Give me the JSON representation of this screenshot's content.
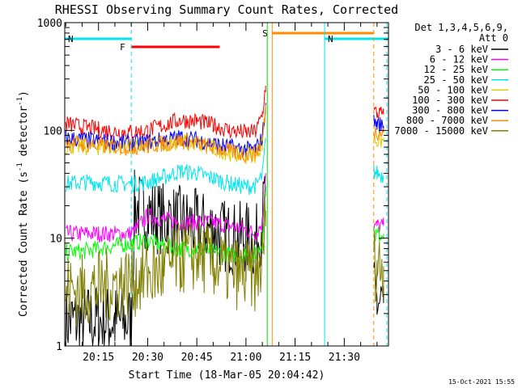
{
  "chart_data": {
    "type": "line",
    "title": "RHESSI Observing Summary Count Rates, Corrected",
    "xlabel": "Start Time (18-Mar-05 20:04:42)",
    "ylabel_main": "Corrected Count Rate (s",
    "ylabel_sup1": "-1",
    "ylabel_mid": " detector",
    "ylabel_sup2": "-1",
    "ylabel_end": ")",
    "y_scale": "log",
    "ylim": [
      1,
      1000
    ],
    "xlim": [
      "20:04:42",
      "21:43:30"
    ],
    "x_ticks": [
      "20:15",
      "20:30",
      "20:45",
      "21:00",
      "21:15",
      "21:30"
    ],
    "y_ticks": [
      "1",
      "10",
      "100",
      "1000"
    ],
    "legend_header": [
      "Det 1,3,4,5,6,9,",
      "Att 0"
    ],
    "timestamp": "15-Oct-2021 15:55",
    "flags": [
      {
        "label": "N",
        "color": "#00e5ee",
        "start": "20:04:42",
        "end": "20:25:00"
      },
      {
        "label": "N",
        "color": "#00e5ee",
        "start": "21:24:00",
        "end": "21:43:30"
      },
      {
        "label": "F",
        "color": "#ff0000",
        "start": "20:25:00",
        "end": "20:52:00"
      },
      {
        "label": "S",
        "color": "#ff8c00",
        "start": "21:08:00",
        "end": "21:39:00"
      }
    ],
    "vlines": [
      {
        "time": "20:25:00",
        "color": "#00e5ee",
        "style": "dashed"
      },
      {
        "time": "21:06:30",
        "color": "#00dd00",
        "style": "solid"
      },
      {
        "time": "21:08:00",
        "color": "#ff8c00",
        "style": "solid"
      },
      {
        "time": "21:24:00",
        "color": "#00e5ee",
        "style": "solid"
      },
      {
        "time": "21:39:00",
        "color": "#ff8c00",
        "style": "dashed"
      },
      {
        "time": "21:43:00",
        "color": "#00e5ee",
        "style": "dashed"
      }
    ],
    "series": [
      {
        "name": "3 - 6 keV",
        "color": "#000000",
        "segments": [
          [
            [
              "20:05",
              1.7
            ],
            [
              "20:10",
              1.7
            ],
            [
              "20:15",
              1.7
            ],
            [
              "20:20",
              1.7
            ],
            [
              "20:25",
              1.7
            ],
            [
              "20:26",
              20
            ],
            [
              "20:30",
              17
            ],
            [
              "20:35",
              15
            ],
            [
              "20:40",
              14
            ],
            [
              "20:45",
              13
            ],
            [
              "20:50",
              12
            ],
            [
              "20:55",
              10
            ],
            [
              "21:00",
              10
            ],
            [
              "21:03",
              9
            ],
            [
              "21:05",
              14
            ],
            [
              "21:06",
              30
            ]
          ],
          [
            [
              "21:39",
              3
            ],
            [
              "21:40",
              2.5
            ],
            [
              "21:42",
              2.5
            ]
          ]
        ]
      },
      {
        "name": "6 - 12 keV",
        "color": "#ff00ff",
        "segments": [
          [
            [
              "20:05",
              11
            ],
            [
              "20:10",
              11
            ],
            [
              "20:15",
              11
            ],
            [
              "20:20",
              11
            ],
            [
              "20:25",
              11
            ],
            [
              "20:30",
              16
            ],
            [
              "20:35",
              15
            ],
            [
              "20:40",
              14
            ],
            [
              "20:45",
              14
            ],
            [
              "20:50",
              14
            ],
            [
              "20:55",
              13
            ],
            [
              "21:00",
              12
            ],
            [
              "21:03",
              11
            ],
            [
              "21:05",
              14
            ],
            [
              "21:06",
              40
            ]
          ],
          [
            [
              "21:39",
              13
            ],
            [
              "21:40",
              13
            ],
            [
              "21:42",
              13
            ]
          ]
        ]
      },
      {
        "name": "12 - 25 keV",
        "color": "#00ff00",
        "segments": [
          [
            [
              "20:05",
              7.5
            ],
            [
              "20:10",
              7.5
            ],
            [
              "20:15",
              8
            ],
            [
              "20:20",
              8.5
            ],
            [
              "20:25",
              9
            ],
            [
              "20:30",
              9.5
            ],
            [
              "20:35",
              8.5
            ],
            [
              "20:40",
              8
            ],
            [
              "20:45",
              8
            ],
            [
              "20:50",
              7.5
            ],
            [
              "20:55",
              7
            ],
            [
              "21:00",
              7
            ],
            [
              "21:03",
              7
            ],
            [
              "21:05",
              9
            ],
            [
              "21:06",
              30
            ]
          ],
          [
            [
              "21:39",
              11
            ],
            [
              "21:40",
              11
            ],
            [
              "21:42",
              11
            ]
          ]
        ]
      },
      {
        "name": "25 - 50 keV",
        "color": "#00e5ee",
        "segments": [
          [
            [
              "20:05",
              32
            ],
            [
              "20:10",
              33
            ],
            [
              "20:15",
              33
            ],
            [
              "20:20",
              32
            ],
            [
              "20:25",
              32
            ],
            [
              "20:30",
              33
            ],
            [
              "20:35",
              37
            ],
            [
              "20:40",
              42
            ],
            [
              "20:45",
              40
            ],
            [
              "20:50",
              36
            ],
            [
              "20:55",
              32
            ],
            [
              "21:00",
              30
            ],
            [
              "21:03",
              31
            ],
            [
              "21:05",
              38
            ],
            [
              "21:06",
              80
            ]
          ],
          [
            [
              "21:39",
              42
            ],
            [
              "21:40",
              40
            ],
            [
              "21:42",
              38
            ]
          ]
        ]
      },
      {
        "name": "50 - 100 keV",
        "color": "#ddcc00",
        "segments": [
          [
            [
              "20:05",
              72
            ],
            [
              "20:10",
              70
            ],
            [
              "20:15",
              70
            ],
            [
              "20:20",
              71
            ],
            [
              "20:25",
              70
            ],
            [
              "20:30",
              72
            ],
            [
              "20:35",
              75
            ],
            [
              "20:40",
              80
            ],
            [
              "20:45",
              75
            ],
            [
              "20:50",
              68
            ],
            [
              "20:55",
              62
            ],
            [
              "21:00",
              58
            ],
            [
              "21:03",
              60
            ],
            [
              "21:05",
              75
            ],
            [
              "21:06",
              150
            ]
          ],
          [
            [
              "21:39",
              85
            ],
            [
              "21:40",
              80
            ],
            [
              "21:42",
              80
            ]
          ]
        ]
      },
      {
        "name": "100 - 300 keV",
        "color": "#ff0000",
        "segments": [
          [
            [
              "20:05",
              115
            ],
            [
              "20:10",
              108
            ],
            [
              "20:15",
              102
            ],
            [
              "20:20",
              98
            ],
            [
              "20:25",
              96
            ],
            [
              "20:30",
              100
            ],
            [
              "20:35",
              112
            ],
            [
              "20:40",
              125
            ],
            [
              "20:45",
              122
            ],
            [
              "20:50",
              112
            ],
            [
              "20:55",
              100
            ],
            [
              "21:00",
              95
            ],
            [
              "21:03",
              97
            ],
            [
              "21:05",
              140
            ],
            [
              "21:06",
              260
            ]
          ],
          [
            [
              "21:39",
              150
            ],
            [
              "21:40",
              145
            ],
            [
              "21:42",
              140
            ]
          ]
        ]
      },
      {
        "name": "300 - 800 keV",
        "color": "#0000ff",
        "segments": [
          [
            [
              "20:05",
              85
            ],
            [
              "20:10",
              82
            ],
            [
              "20:15",
              80
            ],
            [
              "20:20",
              78
            ],
            [
              "20:25",
              76
            ],
            [
              "20:30",
              78
            ],
            [
              "20:35",
              82
            ],
            [
              "20:40",
              86
            ],
            [
              "20:45",
              82
            ],
            [
              "20:50",
              75
            ],
            [
              "20:55",
              70
            ],
            [
              "21:00",
              66
            ],
            [
              "21:03",
              67
            ],
            [
              "21:05",
              85
            ],
            [
              "21:06",
              180
            ]
          ],
          [
            [
              "21:39",
              120
            ],
            [
              "21:40",
              115
            ],
            [
              "21:42",
              110
            ]
          ]
        ]
      },
      {
        "name": "800 - 7000 keV",
        "color": "#ff8c00",
        "segments": [
          [
            [
              "20:05",
              78
            ],
            [
              "20:10",
              75
            ],
            [
              "20:15",
              72
            ],
            [
              "20:20",
              71
            ],
            [
              "20:25",
              70
            ],
            [
              "20:30",
              72
            ],
            [
              "20:35",
              76
            ],
            [
              "20:40",
              80
            ],
            [
              "20:45",
              76
            ],
            [
              "20:50",
              69
            ],
            [
              "20:55",
              64
            ],
            [
              "21:00",
              60
            ],
            [
              "21:03",
              62
            ],
            [
              "21:05",
              80
            ],
            [
              "21:06",
              160
            ]
          ],
          [
            [
              "21:39",
              100
            ],
            [
              "21:40",
              98
            ],
            [
              "21:42",
              95
            ]
          ]
        ]
      },
      {
        "name": "7000 - 15000 keV",
        "color": "#808000",
        "segments": [
          [
            [
              "20:05",
              3.3
            ],
            [
              "20:10",
              3.3
            ],
            [
              "20:15",
              3.5
            ],
            [
              "20:20",
              3.8
            ],
            [
              "20:25",
              4
            ],
            [
              "20:30",
              4.5
            ],
            [
              "20:35",
              5
            ],
            [
              "20:40",
              6.5
            ],
            [
              "20:45",
              7
            ],
            [
              "20:50",
              6
            ],
            [
              "20:55",
              5
            ],
            [
              "21:00",
              4.5
            ],
            [
              "21:03",
              4.5
            ],
            [
              "21:05",
              6
            ],
            [
              "21:06",
              18
            ]
          ],
          [
            [
              "21:39",
              6
            ],
            [
              "21:40",
              5.5
            ],
            [
              "21:42",
              5.5
            ]
          ]
        ]
      }
    ]
  }
}
